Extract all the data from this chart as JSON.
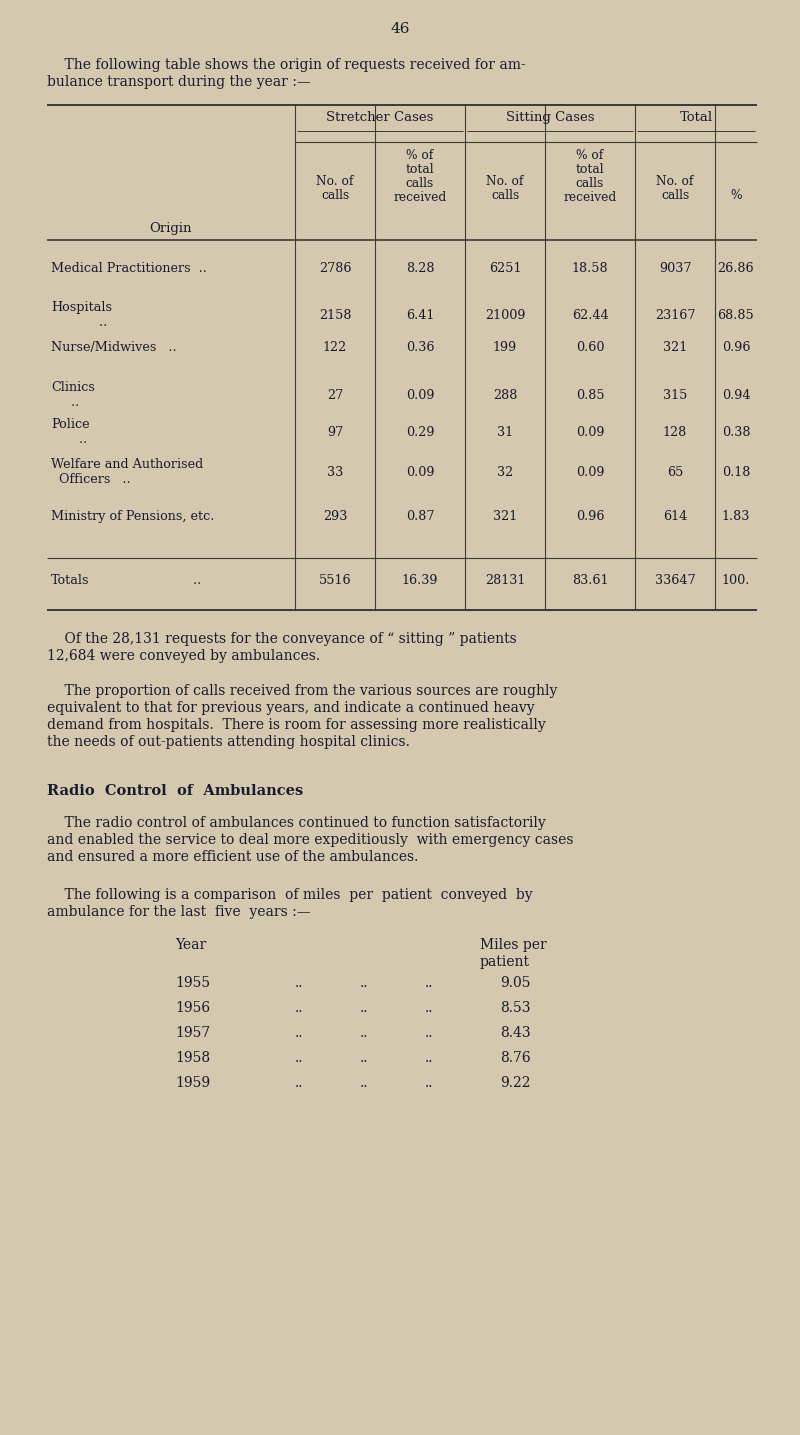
{
  "bg_color": "#d4c9ae",
  "text_color": "#1a1a2e",
  "page_number": "46",
  "intro_line1": "    The following table shows the origin of requests received for am-",
  "intro_line2": "bulance transport during the year :—",
  "table": {
    "rows": [
      {
        "origin": "Medical Practitioners  ..",
        "s_calls": "2786",
        "s_pct": "8.28",
        "sit_calls": "6251",
        "sit_pct": "18.58",
        "t_calls": "9037",
        "t_pct": "26.86"
      },
      {
        "origin": "Hospitals",
        "origin2": "            ..",
        "s_calls": "2158",
        "s_pct": "6.41",
        "sit_calls": "21009",
        "sit_pct": "62.44",
        "t_calls": "23167",
        "t_pct": "68.85"
      },
      {
        "origin": "Nurse/Midwives   ..",
        "s_calls": "122",
        "s_pct": "0.36",
        "sit_calls": "199",
        "sit_pct": "0.60",
        "t_calls": "321",
        "t_pct": "0.96"
      },
      {
        "origin": "Clinics",
        "origin2": "     ..",
        "s_calls": "27",
        "s_pct": "0.09",
        "sit_calls": "288",
        "sit_pct": "0.85",
        "t_calls": "315",
        "t_pct": "0.94"
      },
      {
        "origin": "Police",
        "origin2": "       ..",
        "s_calls": "97",
        "s_pct": "0.29",
        "sit_calls": "31",
        "sit_pct": "0.09",
        "t_calls": "128",
        "t_pct": "0.38"
      },
      {
        "origin": "Welfare and Authorised",
        "origin2": "  Officers   ..",
        "s_calls": "33",
        "s_pct": "0.09",
        "sit_calls": "32",
        "sit_pct": "0.09",
        "t_calls": "65",
        "t_pct": "0.18"
      },
      {
        "origin": "Ministry of Pensions, etc.",
        "s_calls": "293",
        "s_pct": "0.87",
        "sit_calls": "321",
        "sit_pct": "0.96",
        "t_calls": "614",
        "t_pct": "1.83"
      }
    ],
    "totals_row": {
      "origin": "Totals",
      "origin2": "              ..",
      "s_calls": "5516",
      "s_pct": "16.39",
      "sit_calls": "28131",
      "sit_pct": "83.61",
      "t_calls": "33647",
      "t_pct": "100."
    }
  },
  "para1_line1": "    Of the 28,131 requests for the conveyance of “ sitting ” patients",
  "para1_line2": "12,684 were conveyed by ambulances.",
  "para2_line1": "    The proportion of calls received from the various sources are roughly",
  "para2_line2": "equivalent to that for previous years, and indicate a continued heavy",
  "para2_line3": "demand from hospitals.  There is room for assessing more realistically",
  "para2_line4": "the needs of out-patients attending hospital clinics.",
  "section_title": "Radio  Control  of  Ambulances",
  "para3_line1": "    The radio control of ambulances continued to function satisfactorily",
  "para3_line2": "and enabled the service to deal more expeditiously  with emergency cases",
  "para3_line3": "and ensured a more efficient use of the ambulances.",
  "para4_line1": "    The following is a comparison  of miles  per  patient  conveyed  by",
  "para4_line2": "ambulance for the last  five  years :—",
  "miles_years": [
    "1955",
    "1956",
    "1957",
    "1958",
    "1959"
  ],
  "miles_values": [
    "9.05",
    "8.53",
    "8.43",
    "8.76",
    "9.22"
  ]
}
